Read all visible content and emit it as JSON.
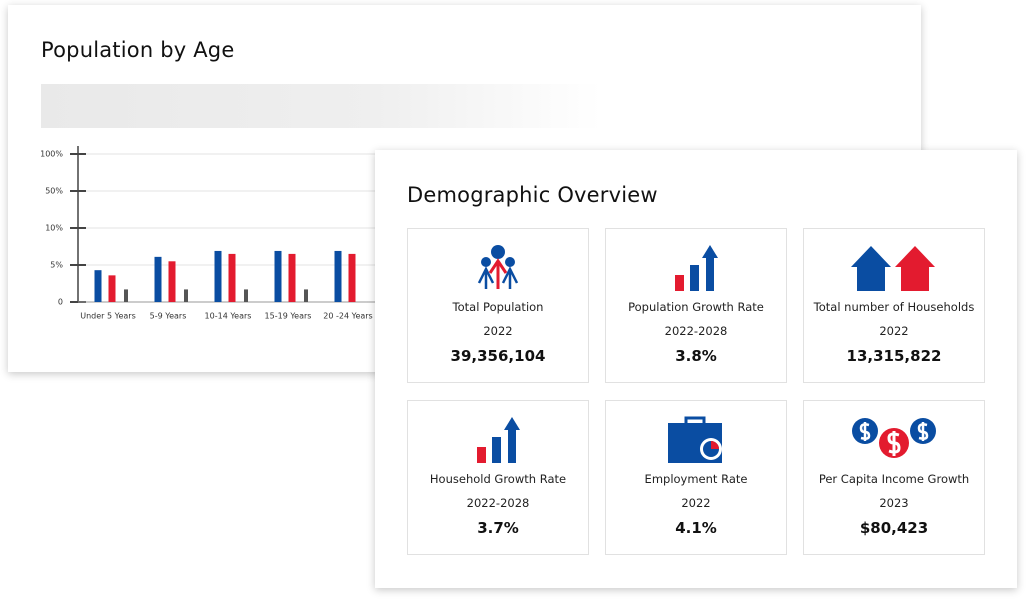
{
  "back_card": {
    "title": "Population by Age"
  },
  "chart_data": {
    "type": "bar",
    "categories": [
      "Under 5 Years",
      "5-9 Years",
      "10-14 Years",
      "15-19 Years",
      "20 -24 Years"
    ],
    "series": [
      {
        "color": "#0a4da2",
        "values": [
          4.3,
          6.1,
          6.9,
          6.9,
          6.9
        ]
      },
      {
        "color": "#e31b2f",
        "values": [
          3.6,
          5.5,
          6.5,
          6.5,
          6.5
        ]
      },
      {
        "color": "#555555",
        "values": [
          1.7,
          1.7,
          1.7,
          1.7,
          null
        ]
      }
    ],
    "ylim": [
      0,
      100
    ],
    "yticks": [
      0,
      {
        "value": 5,
        "label": "5%"
      },
      {
        "value": 10,
        "label": "10%"
      },
      {
        "value": 50,
        "label": "50%"
      },
      {
        "value": 100,
        "label": "100%"
      }
    ],
    "grid": true
  },
  "overview": {
    "title": "Demographic Overview",
    "tiles": [
      {
        "label": "Total Population",
        "period": "2022",
        "value": "39,356,104"
      },
      {
        "label": "Population Growth Rate",
        "period": "2022-2028",
        "value": "3.8%"
      },
      {
        "label": "Total number of Households",
        "period": "2022",
        "value": "13,315,822"
      },
      {
        "label": "Household Growth Rate",
        "period": "2022-2028",
        "value": "3.7%"
      },
      {
        "label": "Employment Rate",
        "period": "2022",
        "value": "4.1%"
      },
      {
        "label": "Per Capita Income Growth",
        "period": "2023",
        "value": "$80,423"
      }
    ]
  }
}
